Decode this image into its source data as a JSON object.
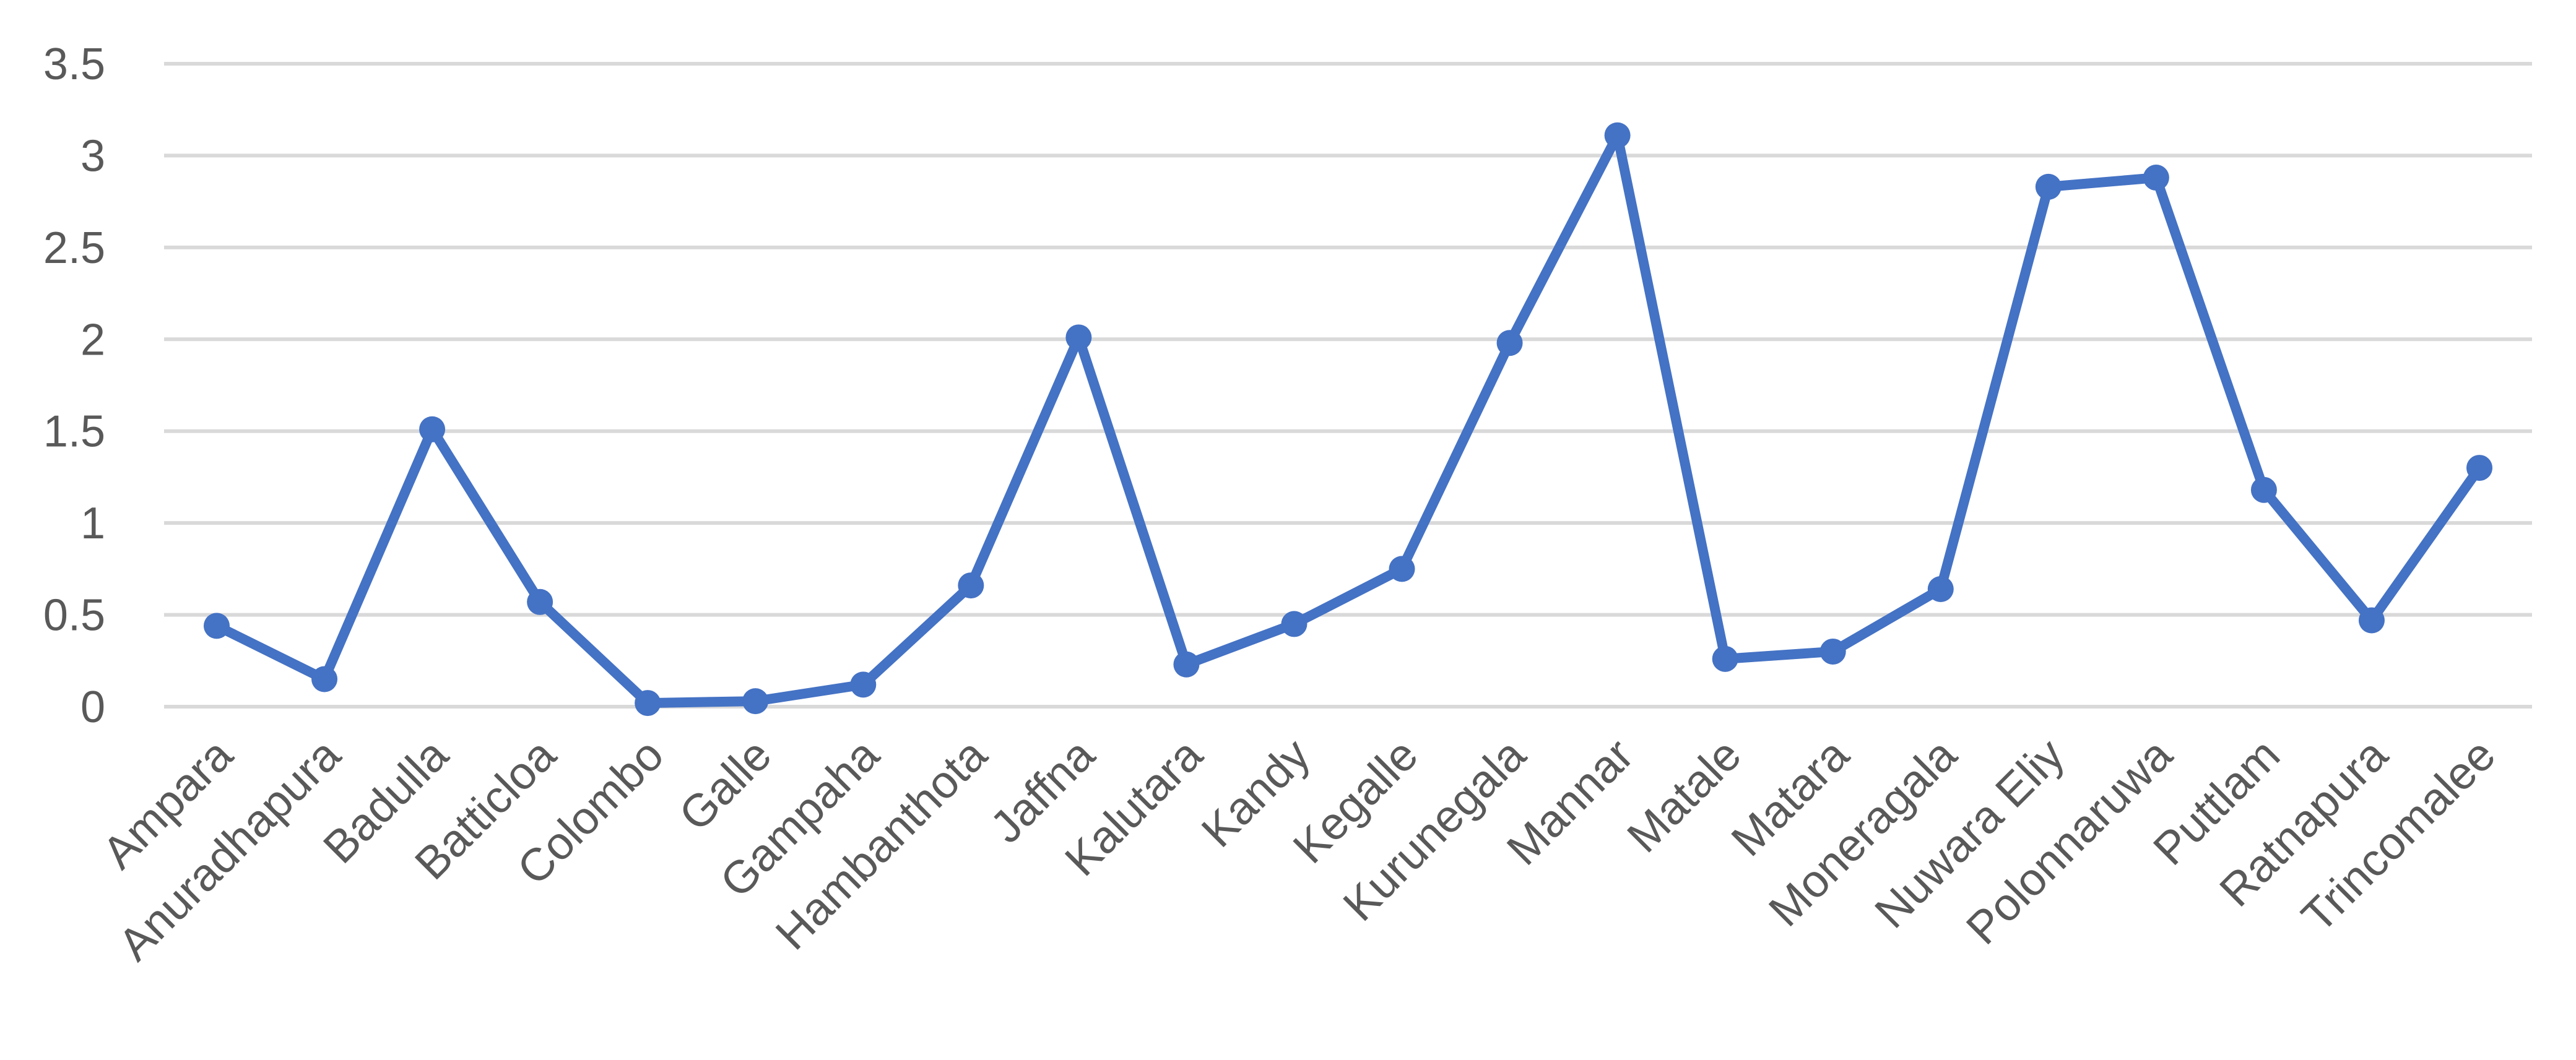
{
  "chart_data": {
    "type": "line",
    "title": "",
    "xlabel": "",
    "ylabel": "",
    "ylim": [
      0,
      3.5
    ],
    "yticks": [
      "0",
      "0.5",
      "1",
      "1.5",
      "2",
      "2.5",
      "3",
      "3.5"
    ],
    "grid": true,
    "legend": "none",
    "categories": [
      "Ampara",
      "Anuradhapura",
      "Badulla",
      "Batticloa",
      "Colombo",
      "Galle",
      "Gampaha",
      "Hambanthota",
      "Jaffna",
      "Kalutara",
      "Kandy",
      "Kegalle",
      "Kurunegala",
      "Mannar",
      "Matale",
      "Matara",
      "Moneragala",
      "Nuwara Eliy",
      "Polonnaruwa",
      "Puttlam",
      "Ratnapura",
      "Trincomalee"
    ],
    "series": [
      {
        "values": [
          0.44,
          0.15,
          1.51,
          0.57,
          0.02,
          0.03,
          0.12,
          0.66,
          2.01,
          0.23,
          0.45,
          0.75,
          1.98,
          3.11,
          0.26,
          0.3,
          0.64,
          2.83,
          2.88,
          1.18,
          0.47,
          1.3
        ],
        "color": "#4472C4"
      }
    ]
  }
}
